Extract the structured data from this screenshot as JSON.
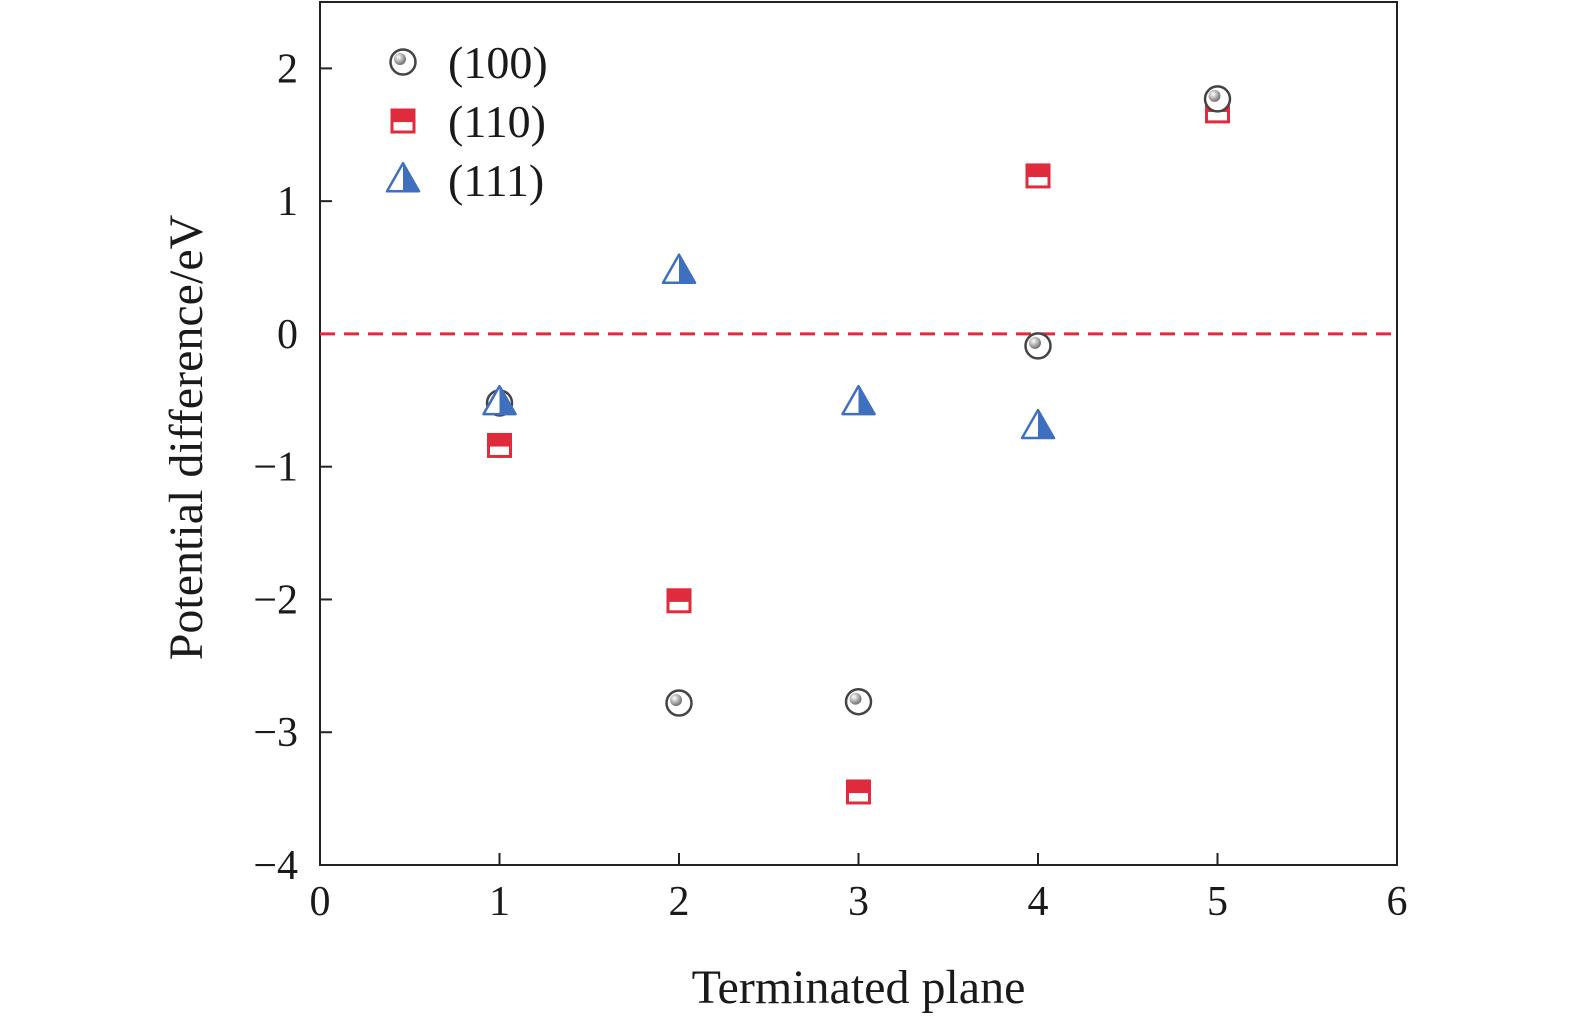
{
  "chart_data": {
    "type": "scatter",
    "title": "",
    "xlabel": "Terminated plane",
    "ylabel": "Potential difference/eV",
    "xlim": [
      0,
      6
    ],
    "ylim": [
      -4,
      2.5
    ],
    "xticks": [
      0,
      1,
      2,
      3,
      4,
      5,
      6
    ],
    "xtick_labels": [
      "0",
      "1",
      "2",
      "3",
      "4",
      "5",
      "6"
    ],
    "yticks": [
      -4,
      -3,
      -2,
      -1,
      0,
      1,
      2
    ],
    "ytick_labels": [
      "−4",
      "−3",
      "−2",
      "−1",
      "0",
      "1",
      "2"
    ],
    "reference_line": {
      "y": 0,
      "style": "dashed",
      "color": "#e02b3c"
    },
    "legend_position": "top-left",
    "series": [
      {
        "name": "(100)",
        "marker": "circle",
        "color": "#444444",
        "points": [
          [
            1,
            -0.52
          ],
          [
            2,
            -2.78
          ],
          [
            3,
            -2.77
          ],
          [
            4,
            -0.09
          ],
          [
            5,
            1.77
          ]
        ]
      },
      {
        "name": "(110)",
        "marker": "square",
        "color": "#e02b3c",
        "points": [
          [
            1,
            -0.84
          ],
          [
            2,
            -2.01
          ],
          [
            3,
            -3.45
          ],
          [
            4,
            1.19
          ],
          [
            5,
            1.68
          ]
        ]
      },
      {
        "name": "(111)",
        "marker": "triangle",
        "color": "#3f6fbf",
        "points": [
          [
            1,
            -0.52
          ],
          [
            2,
            0.47
          ],
          [
            3,
            -0.52
          ],
          [
            4,
            -0.7
          ]
        ]
      }
    ]
  }
}
